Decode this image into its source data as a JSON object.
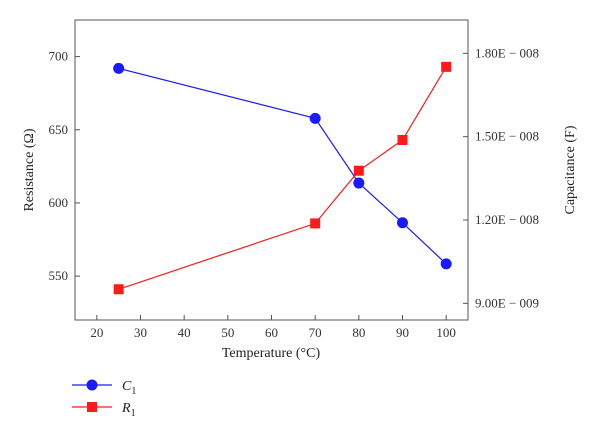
{
  "chart_data": {
    "type": "line",
    "xlabel": "Temperature (°C)",
    "ylabel_left": "Resistance (Ω)",
    "ylabel_right": "Capacitance (F)",
    "xlim": [
      15,
      105
    ],
    "ylim_left": [
      520,
      725
    ],
    "ylim_right": [
      8.4e-09,
      1.92e-08
    ],
    "x_ticks": [
      20,
      30,
      40,
      50,
      60,
      70,
      80,
      90,
      100
    ],
    "y_left_ticks": [
      550,
      600,
      650,
      700
    ],
    "y_right_ticks": [
      {
        "value": 9e-09,
        "label": "9.00E − 009"
      },
      {
        "value": 1.2e-08,
        "label": "1.20E − 008"
      },
      {
        "value": 1.5e-08,
        "label": "1.50E − 008"
      },
      {
        "value": 1.8e-08,
        "label": "1.80E − 008"
      }
    ],
    "series": [
      {
        "name": "C1",
        "axis": "right",
        "color": "#1a1aff",
        "marker": "circle",
        "x": [
          25,
          70,
          80,
          90,
          100
        ],
        "y": [
          1.746e-08,
          1.566e-08,
          1.333e-08,
          1.19e-08,
          1.042e-08
        ]
      },
      {
        "name": "R1",
        "axis": "left",
        "color": "#ff1a1a",
        "marker": "square",
        "x": [
          25,
          70,
          80,
          90,
          100
        ],
        "y": [
          541,
          586,
          622,
          643,
          693
        ]
      }
    ],
    "legend": "bottom-left",
    "grid": false
  }
}
